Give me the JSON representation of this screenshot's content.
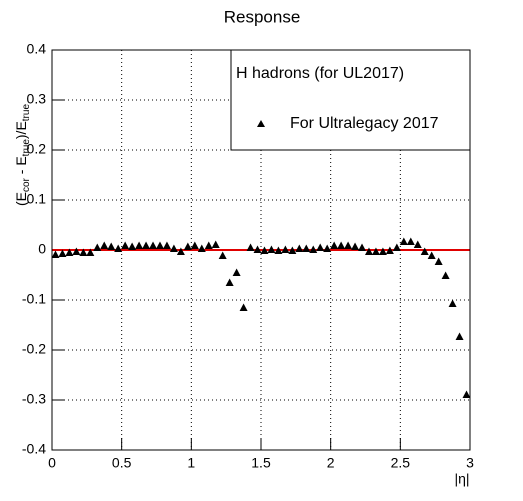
{
  "chart_data": {
    "type": "scatter",
    "title": "Response",
    "x_label": "|η|",
    "y_label": [
      "(E",
      "cor",
      " - E",
      "true",
      ")/E",
      "true"
    ],
    "legend_title": "H hadrons (for UL2017)",
    "xlim": [
      0,
      3
    ],
    "ylim": [
      -0.4,
      0.4
    ],
    "xticks": [
      0,
      0.5,
      1,
      1.5,
      2,
      2.5,
      3
    ],
    "yticks": [
      -0.4,
      -0.3,
      -0.2,
      -0.1,
      0,
      0.1,
      0.2,
      0.3,
      0.4
    ],
    "grid": true,
    "hline": {
      "value": 0,
      "color": "#e00000"
    },
    "series": [
      {
        "name": "For Ultralegacy 2017",
        "color": "#000000",
        "x": [
          0.025,
          0.075,
          0.125,
          0.175,
          0.225,
          0.275,
          0.325,
          0.375,
          0.425,
          0.475,
          0.525,
          0.575,
          0.625,
          0.675,
          0.725,
          0.775,
          0.825,
          0.875,
          0.925,
          0.975,
          1.025,
          1.075,
          1.125,
          1.175,
          1.225,
          1.275,
          1.325,
          1.375,
          1.425,
          1.475,
          1.525,
          1.575,
          1.625,
          1.675,
          1.725,
          1.775,
          1.825,
          1.875,
          1.925,
          1.975,
          2.025,
          2.075,
          2.125,
          2.175,
          2.225,
          2.275,
          2.325,
          2.375,
          2.425,
          2.475,
          2.525,
          2.575,
          2.625,
          2.675,
          2.725,
          2.775,
          2.825,
          2.875,
          2.925,
          2.975
        ],
        "values": [
          -0.01,
          -0.008,
          -0.006,
          -0.004,
          -0.006,
          -0.006,
          0.004,
          0.008,
          0.006,
          0.002,
          0.008,
          0.006,
          0.008,
          0.008,
          0.008,
          0.008,
          0.008,
          0.002,
          -0.004,
          0.006,
          0.008,
          0.002,
          0.008,
          0.01,
          -0.012,
          -0.066,
          -0.046,
          -0.116,
          0.004,
          0.0,
          -0.002,
          0.0,
          -0.002,
          0.0,
          -0.002,
          0.002,
          0.002,
          0.0,
          0.004,
          0.002,
          0.008,
          0.008,
          0.008,
          0.006,
          0.004,
          -0.004,
          -0.004,
          -0.004,
          -0.002,
          0.004,
          0.016,
          0.016,
          0.01,
          -0.004,
          -0.012,
          -0.024,
          -0.052,
          -0.108,
          -0.174,
          -0.29
        ]
      }
    ]
  }
}
